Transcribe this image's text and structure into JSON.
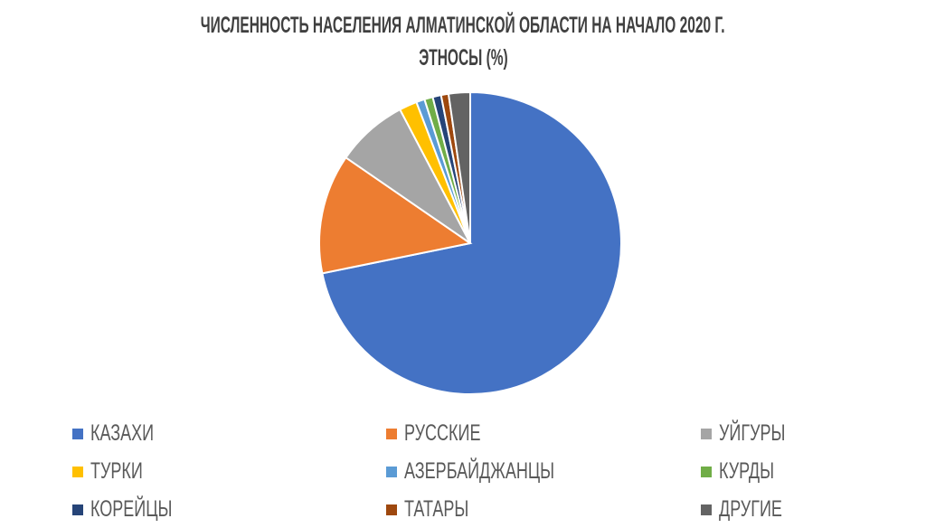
{
  "chart_data": {
    "type": "pie",
    "title": "ЧИСЛЕННОСТЬ НАСЕЛЕНИЯ АЛМАТИНСКОЙ ОБЛАСТИ НА НАЧАЛО 2020 Г.",
    "subtitle": "ЭТНОСЫ (%)",
    "legend_position": "bottom",
    "categories": [
      "КАЗАХИ",
      "РУССКИЕ",
      "УЙГУРЫ",
      "ТУРКИ",
      "АЗЕРБАЙДЖАНЦЫ",
      "КУРДЫ",
      "КОРЕЙЦЫ",
      "ТАТАРЫ",
      "ДРУГИЕ"
    ],
    "values": [
      71.8,
      12.8,
      7.7,
      1.9,
      0.9,
      0.9,
      0.9,
      0.8,
      2.3
    ],
    "colors": [
      "#4472C4",
      "#ED7D31",
      "#A5A5A5",
      "#FFC000",
      "#5B9BD5",
      "#70AD47",
      "#264478",
      "#9E480E",
      "#636363"
    ]
  }
}
